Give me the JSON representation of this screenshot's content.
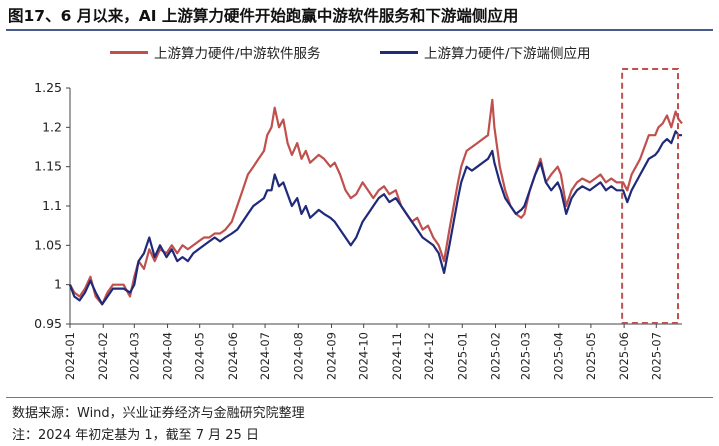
{
  "header": {
    "title": "图17、6 月以来，AI 上游算力硬件开始跑赢中游软件服务和下游端侧应用"
  },
  "footer": {
    "source": "数据来源：Wind，兴业证券经济与金融研究院整理",
    "note": "注：2024 年初定基为 1，截至 7 月 25 日"
  },
  "colors": {
    "series1": "#c0504d",
    "series2": "#1f2a7a",
    "highlight_box": "#c0504d",
    "rule": "#4a5a8a"
  },
  "chart_data": {
    "type": "line",
    "title": "",
    "xlabel": "",
    "ylabel": "",
    "ylim": [
      0.95,
      1.25
    ],
    "yticks": [
      0.95,
      1,
      1.05,
      1.1,
      1.15,
      1.2,
      1.25
    ],
    "ytick_labels": [
      "0.95",
      "1",
      "1.05",
      "1.1",
      "1.15",
      "1.2",
      "1.25"
    ],
    "x_ticks": [
      "2024-01",
      "2024-02",
      "2024-03",
      "2024-04",
      "2024-05",
      "2024-06",
      "2024-07",
      "2024-08",
      "2024-09",
      "2024-10",
      "2024-11",
      "2024-12",
      "2025-01",
      "2025-02",
      "2025-03",
      "2025-04",
      "2025-05",
      "2025-06",
      "2025-07"
    ],
    "x_range": [
      "2024-01-01",
      "2025-07-25"
    ],
    "grid": false,
    "legend_position": "top",
    "highlight_range": [
      "2025-06-01",
      "2025-07-25"
    ],
    "series": [
      {
        "name": "上游算力硬件/中游软件服务",
        "color": "#c0504d",
        "points": [
          [
            "2024-01-01",
            1.0
          ],
          [
            "2024-01-05",
            0.99
          ],
          [
            "2024-01-10",
            0.985
          ],
          [
            "2024-01-15",
            0.995
          ],
          [
            "2024-01-20",
            1.01
          ],
          [
            "2024-01-25",
            0.985
          ],
          [
            "2024-01-31",
            0.975
          ],
          [
            "2024-02-05",
            0.99
          ],
          [
            "2024-02-10",
            1.0
          ],
          [
            "2024-02-20",
            1.0
          ],
          [
            "2024-02-26",
            0.985
          ],
          [
            "2024-03-01",
            1.01
          ],
          [
            "2024-03-05",
            1.03
          ],
          [
            "2024-03-10",
            1.02
          ],
          [
            "2024-03-15",
            1.045
          ],
          [
            "2024-03-20",
            1.03
          ],
          [
            "2024-03-25",
            1.045
          ],
          [
            "2024-03-31",
            1.04
          ],
          [
            "2024-04-05",
            1.05
          ],
          [
            "2024-04-10",
            1.04
          ],
          [
            "2024-04-15",
            1.05
          ],
          [
            "2024-04-20",
            1.045
          ],
          [
            "2024-04-25",
            1.05
          ],
          [
            "2024-04-30",
            1.055
          ],
          [
            "2024-05-05",
            1.06
          ],
          [
            "2024-05-10",
            1.06
          ],
          [
            "2024-05-15",
            1.065
          ],
          [
            "2024-05-20",
            1.065
          ],
          [
            "2024-05-25",
            1.07
          ],
          [
            "2024-05-31",
            1.08
          ],
          [
            "2024-06-05",
            1.1
          ],
          [
            "2024-06-10",
            1.12
          ],
          [
            "2024-06-15",
            1.14
          ],
          [
            "2024-06-20",
            1.15
          ],
          [
            "2024-06-25",
            1.16
          ],
          [
            "2024-06-30",
            1.17
          ],
          [
            "2024-07-03",
            1.19
          ],
          [
            "2024-07-07",
            1.2
          ],
          [
            "2024-07-10",
            1.225
          ],
          [
            "2024-07-14",
            1.2
          ],
          [
            "2024-07-18",
            1.21
          ],
          [
            "2024-07-22",
            1.18
          ],
          [
            "2024-07-26",
            1.165
          ],
          [
            "2024-07-31",
            1.18
          ],
          [
            "2024-08-04",
            1.16
          ],
          [
            "2024-08-08",
            1.17
          ],
          [
            "2024-08-12",
            1.155
          ],
          [
            "2024-08-16",
            1.16
          ],
          [
            "2024-08-20",
            1.165
          ],
          [
            "2024-08-25",
            1.16
          ],
          [
            "2024-08-31",
            1.15
          ],
          [
            "2024-09-04",
            1.155
          ],
          [
            "2024-09-09",
            1.14
          ],
          [
            "2024-09-14",
            1.12
          ],
          [
            "2024-09-19",
            1.11
          ],
          [
            "2024-09-24",
            1.115
          ],
          [
            "2024-09-30",
            1.13
          ],
          [
            "2024-10-05",
            1.12
          ],
          [
            "2024-10-10",
            1.11
          ],
          [
            "2024-10-15",
            1.12
          ],
          [
            "2024-10-20",
            1.125
          ],
          [
            "2024-10-25",
            1.115
          ],
          [
            "2024-10-31",
            1.12
          ],
          [
            "2024-11-05",
            1.1
          ],
          [
            "2024-11-10",
            1.09
          ],
          [
            "2024-11-15",
            1.08
          ],
          [
            "2024-11-20",
            1.085
          ],
          [
            "2024-11-25",
            1.07
          ],
          [
            "2024-11-30",
            1.075
          ],
          [
            "2024-12-05",
            1.06
          ],
          [
            "2024-12-10",
            1.05
          ],
          [
            "2024-12-15",
            1.03
          ],
          [
            "2024-12-20",
            1.07
          ],
          [
            "2024-12-24",
            1.1
          ],
          [
            "2024-12-28",
            1.13
          ],
          [
            "2024-12-31",
            1.15
          ],
          [
            "2025-01-05",
            1.17
          ],
          [
            "2025-01-10",
            1.175
          ],
          [
            "2025-01-15",
            1.18
          ],
          [
            "2025-01-20",
            1.185
          ],
          [
            "2025-01-25",
            1.19
          ],
          [
            "2025-01-29",
            1.235
          ],
          [
            "2025-01-31",
            1.2
          ],
          [
            "2025-02-05",
            1.15
          ],
          [
            "2025-02-10",
            1.12
          ],
          [
            "2025-02-15",
            1.1
          ],
          [
            "2025-02-20",
            1.09
          ],
          [
            "2025-02-25",
            1.085
          ],
          [
            "2025-02-28",
            1.09
          ],
          [
            "2025-03-05",
            1.12
          ],
          [
            "2025-03-10",
            1.14
          ],
          [
            "2025-03-15",
            1.16
          ],
          [
            "2025-03-20",
            1.13
          ],
          [
            "2025-03-25",
            1.14
          ],
          [
            "2025-03-31",
            1.15
          ],
          [
            "2025-04-03",
            1.14
          ],
          [
            "2025-04-08",
            1.1
          ],
          [
            "2025-04-13",
            1.12
          ],
          [
            "2025-04-18",
            1.13
          ],
          [
            "2025-04-23",
            1.135
          ],
          [
            "2025-04-30",
            1.13
          ],
          [
            "2025-05-05",
            1.135
          ],
          [
            "2025-05-10",
            1.14
          ],
          [
            "2025-05-15",
            1.13
          ],
          [
            "2025-05-20",
            1.135
          ],
          [
            "2025-05-25",
            1.13
          ],
          [
            "2025-05-31",
            1.13
          ],
          [
            "2025-06-04",
            1.12
          ],
          [
            "2025-06-08",
            1.14
          ],
          [
            "2025-06-12",
            1.15
          ],
          [
            "2025-06-16",
            1.16
          ],
          [
            "2025-06-20",
            1.175
          ],
          [
            "2025-06-24",
            1.19
          ],
          [
            "2025-06-30",
            1.19
          ],
          [
            "2025-07-03",
            1.2
          ],
          [
            "2025-07-07",
            1.205
          ],
          [
            "2025-07-11",
            1.215
          ],
          [
            "2025-07-15",
            1.2
          ],
          [
            "2025-07-19",
            1.22
          ],
          [
            "2025-07-22",
            1.21
          ],
          [
            "2025-07-25",
            1.205
          ]
        ]
      },
      {
        "name": "上游算力硬件/下游端侧应用",
        "color": "#1f2a7a",
        "points": [
          [
            "2024-01-01",
            1.0
          ],
          [
            "2024-01-05",
            0.985
          ],
          [
            "2024-01-10",
            0.98
          ],
          [
            "2024-01-15",
            0.99
          ],
          [
            "2024-01-20",
            1.005
          ],
          [
            "2024-01-25",
            0.99
          ],
          [
            "2024-01-31",
            0.975
          ],
          [
            "2024-02-05",
            0.985
          ],
          [
            "2024-02-10",
            0.995
          ],
          [
            "2024-02-20",
            0.995
          ],
          [
            "2024-02-26",
            0.99
          ],
          [
            "2024-03-01",
            1.0
          ],
          [
            "2024-03-05",
            1.03
          ],
          [
            "2024-03-10",
            1.04
          ],
          [
            "2024-03-15",
            1.06
          ],
          [
            "2024-03-20",
            1.035
          ],
          [
            "2024-03-25",
            1.05
          ],
          [
            "2024-03-31",
            1.035
          ],
          [
            "2024-04-05",
            1.045
          ],
          [
            "2024-04-10",
            1.03
          ],
          [
            "2024-04-15",
            1.035
          ],
          [
            "2024-04-20",
            1.03
          ],
          [
            "2024-04-25",
            1.04
          ],
          [
            "2024-04-30",
            1.045
          ],
          [
            "2024-05-05",
            1.05
          ],
          [
            "2024-05-10",
            1.055
          ],
          [
            "2024-05-15",
            1.06
          ],
          [
            "2024-05-20",
            1.055
          ],
          [
            "2024-05-25",
            1.06
          ],
          [
            "2024-05-31",
            1.065
          ],
          [
            "2024-06-05",
            1.07
          ],
          [
            "2024-06-10",
            1.08
          ],
          [
            "2024-06-15",
            1.09
          ],
          [
            "2024-06-20",
            1.1
          ],
          [
            "2024-06-25",
            1.105
          ],
          [
            "2024-06-30",
            1.11
          ],
          [
            "2024-07-03",
            1.12
          ],
          [
            "2024-07-07",
            1.12
          ],
          [
            "2024-07-10",
            1.14
          ],
          [
            "2024-07-14",
            1.125
          ],
          [
            "2024-07-18",
            1.13
          ],
          [
            "2024-07-22",
            1.115
          ],
          [
            "2024-07-26",
            1.1
          ],
          [
            "2024-07-31",
            1.11
          ],
          [
            "2024-08-04",
            1.09
          ],
          [
            "2024-08-08",
            1.1
          ],
          [
            "2024-08-12",
            1.085
          ],
          [
            "2024-08-16",
            1.09
          ],
          [
            "2024-08-20",
            1.095
          ],
          [
            "2024-08-25",
            1.09
          ],
          [
            "2024-08-31",
            1.085
          ],
          [
            "2024-09-04",
            1.08
          ],
          [
            "2024-09-09",
            1.07
          ],
          [
            "2024-09-14",
            1.06
          ],
          [
            "2024-09-19",
            1.05
          ],
          [
            "2024-09-24",
            1.06
          ],
          [
            "2024-09-30",
            1.08
          ],
          [
            "2024-10-05",
            1.09
          ],
          [
            "2024-10-10",
            1.1
          ],
          [
            "2024-10-15",
            1.11
          ],
          [
            "2024-10-20",
            1.115
          ],
          [
            "2024-10-25",
            1.105
          ],
          [
            "2024-10-31",
            1.11
          ],
          [
            "2024-11-05",
            1.1
          ],
          [
            "2024-11-10",
            1.09
          ],
          [
            "2024-11-15",
            1.08
          ],
          [
            "2024-11-20",
            1.07
          ],
          [
            "2024-11-25",
            1.06
          ],
          [
            "2024-11-30",
            1.055
          ],
          [
            "2024-12-05",
            1.05
          ],
          [
            "2024-12-10",
            1.04
          ],
          [
            "2024-12-15",
            1.015
          ],
          [
            "2024-12-20",
            1.05
          ],
          [
            "2024-12-24",
            1.08
          ],
          [
            "2024-12-28",
            1.11
          ],
          [
            "2024-12-31",
            1.13
          ],
          [
            "2025-01-05",
            1.15
          ],
          [
            "2025-01-10",
            1.145
          ],
          [
            "2025-01-15",
            1.15
          ],
          [
            "2025-01-20",
            1.155
          ],
          [
            "2025-01-25",
            1.16
          ],
          [
            "2025-01-29",
            1.17
          ],
          [
            "2025-01-31",
            1.155
          ],
          [
            "2025-02-05",
            1.13
          ],
          [
            "2025-02-10",
            1.11
          ],
          [
            "2025-02-15",
            1.1
          ],
          [
            "2025-02-20",
            1.09
          ],
          [
            "2025-02-25",
            1.095
          ],
          [
            "2025-02-28",
            1.1
          ],
          [
            "2025-03-05",
            1.12
          ],
          [
            "2025-03-10",
            1.14
          ],
          [
            "2025-03-15",
            1.155
          ],
          [
            "2025-03-20",
            1.13
          ],
          [
            "2025-03-25",
            1.12
          ],
          [
            "2025-03-31",
            1.13
          ],
          [
            "2025-04-03",
            1.12
          ],
          [
            "2025-04-08",
            1.09
          ],
          [
            "2025-04-13",
            1.11
          ],
          [
            "2025-04-18",
            1.12
          ],
          [
            "2025-04-23",
            1.125
          ],
          [
            "2025-04-30",
            1.12
          ],
          [
            "2025-05-05",
            1.125
          ],
          [
            "2025-05-10",
            1.13
          ],
          [
            "2025-05-15",
            1.12
          ],
          [
            "2025-05-20",
            1.125
          ],
          [
            "2025-05-25",
            1.12
          ],
          [
            "2025-05-31",
            1.12
          ],
          [
            "2025-06-04",
            1.105
          ],
          [
            "2025-06-08",
            1.12
          ],
          [
            "2025-06-12",
            1.13
          ],
          [
            "2025-06-16",
            1.14
          ],
          [
            "2025-06-20",
            1.15
          ],
          [
            "2025-06-24",
            1.16
          ],
          [
            "2025-06-30",
            1.165
          ],
          [
            "2025-07-03",
            1.17
          ],
          [
            "2025-07-07",
            1.18
          ],
          [
            "2025-07-11",
            1.185
          ],
          [
            "2025-07-15",
            1.18
          ],
          [
            "2025-07-19",
            1.195
          ],
          [
            "2025-07-22",
            1.19
          ],
          [
            "2025-07-25",
            1.19
          ]
        ]
      }
    ]
  }
}
